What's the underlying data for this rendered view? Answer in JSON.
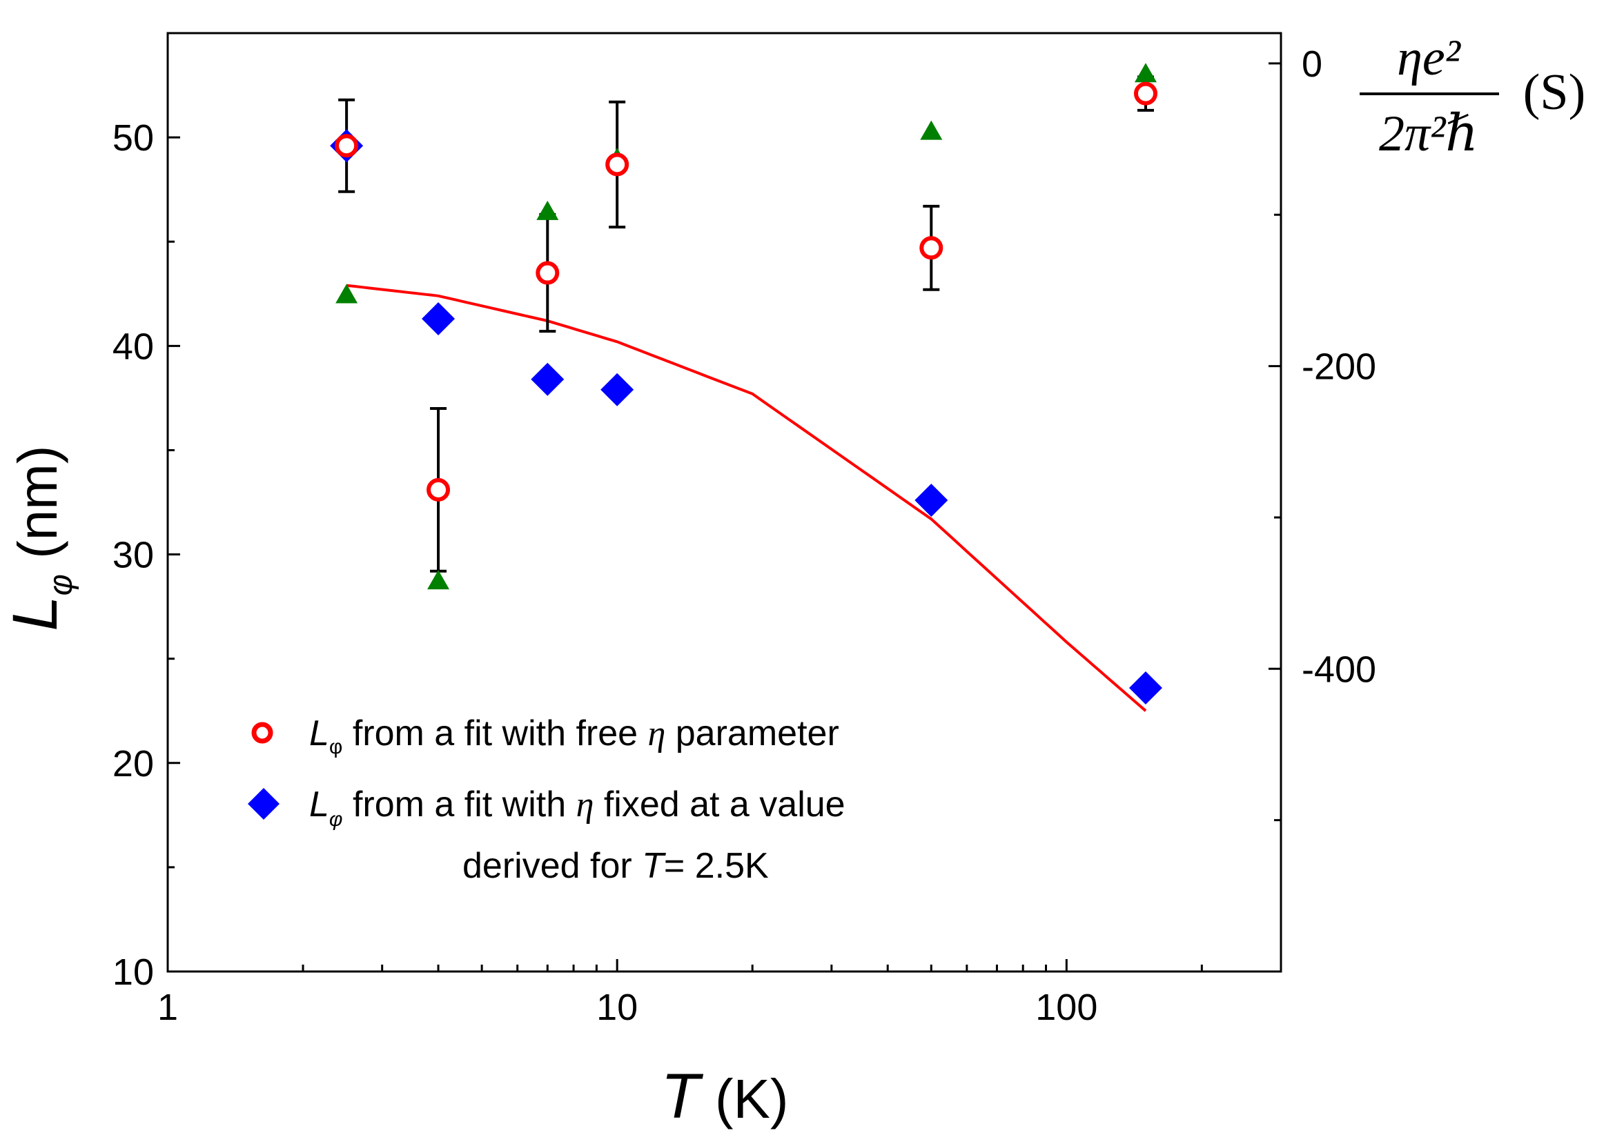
{
  "chart_data": {
    "type": "scatter",
    "x_scale": "log",
    "xlim": [
      1,
      300
    ],
    "ylim": [
      10,
      55
    ],
    "y2lim": [
      -600,
      20
    ],
    "x_ticks": [
      {
        "value": 1,
        "label": "1"
      },
      {
        "value": 10,
        "label": "10"
      },
      {
        "value": 100,
        "label": "100"
      }
    ],
    "y_ticks": [
      {
        "value": 10,
        "label": "10"
      },
      {
        "value": 20,
        "label": "20"
      },
      {
        "value": 30,
        "label": "30"
      },
      {
        "value": 40,
        "label": "40"
      },
      {
        "value": 50,
        "label": "50"
      }
    ],
    "y2_ticks": [
      {
        "value": 0,
        "label": "0"
      },
      {
        "value": -200,
        "label": "-200"
      },
      {
        "value": -400,
        "label": "-400"
      }
    ],
    "xlabel": {
      "italic": "T",
      "rest": " (K)"
    },
    "ylabel": {
      "italic": "L",
      "sub": "φ",
      "rest": " (nm)"
    },
    "y2label": {
      "numerator": "ηe²",
      "denominator": "2π²ℏ",
      "unit": "(S)"
    },
    "series": [
      {
        "name": "Lφ free η",
        "marker": "open-circle",
        "color": "#ff0000",
        "axis": "left",
        "points": [
          {
            "x": 2.5,
            "y": 49.6,
            "err": 2.2
          },
          {
            "x": 4,
            "y": 33.1,
            "err": 3.9
          },
          {
            "x": 7,
            "y": 43.5,
            "err": 2.8
          },
          {
            "x": 10,
            "y": 48.7,
            "err": 3.0
          },
          {
            "x": 50,
            "y": 44.7,
            "err": 2.0
          },
          {
            "x": 150,
            "y": 52.1,
            "err": 0.8
          }
        ]
      },
      {
        "name": "Lφ fixed η",
        "marker": "diamond",
        "color": "#0000ff",
        "axis": "left",
        "points": [
          {
            "x": 2.5,
            "y": 49.6
          },
          {
            "x": 4,
            "y": 41.3
          },
          {
            "x": 7,
            "y": 38.4
          },
          {
            "x": 10,
            "y": 37.9
          },
          {
            "x": 50,
            "y": 32.6
          },
          {
            "x": 150,
            "y": 23.6
          }
        ]
      },
      {
        "name": "eta conductance",
        "marker": "triangle",
        "color": "#008000",
        "axis": "right",
        "points": [
          {
            "x": 2.5,
            "y": -153
          },
          {
            "x": 4,
            "y": -342
          },
          {
            "x": 7,
            "y": -98
          },
          {
            "x": 10,
            "y": -63
          },
          {
            "x": 50,
            "y": -45
          },
          {
            "x": 150,
            "y": -7
          }
        ]
      },
      {
        "name": "fit",
        "type": "line",
        "color": "#ff0000",
        "axis": "left",
        "points": [
          {
            "x": 2.5,
            "y": 42.9
          },
          {
            "x": 4,
            "y": 42.4
          },
          {
            "x": 7,
            "y": 41.2
          },
          {
            "x": 10,
            "y": 40.2
          },
          {
            "x": 20,
            "y": 37.7
          },
          {
            "x": 50,
            "y": 31.7
          },
          {
            "x": 100,
            "y": 25.8
          },
          {
            "x": 150,
            "y": 22.5
          }
        ]
      }
    ],
    "legend": {
      "position": "bottom-left",
      "entries": [
        {
          "marker": "open-circle",
          "color": "#ff0000",
          "symbol": "L",
          "sub": "φ",
          "text_before": " from a fit with free ",
          "greek": "η",
          "text_after": " parameter"
        },
        {
          "marker": "diamond",
          "color": "#0000ff",
          "symbol": "L",
          "sub": "φ",
          "text_before": " from a fit with ",
          "greek": "η",
          "text_after": "  fixed at a value"
        }
      ],
      "note": {
        "prefix": "derived for ",
        "italic": "T",
        "suffix": "= 2.5K"
      }
    }
  }
}
